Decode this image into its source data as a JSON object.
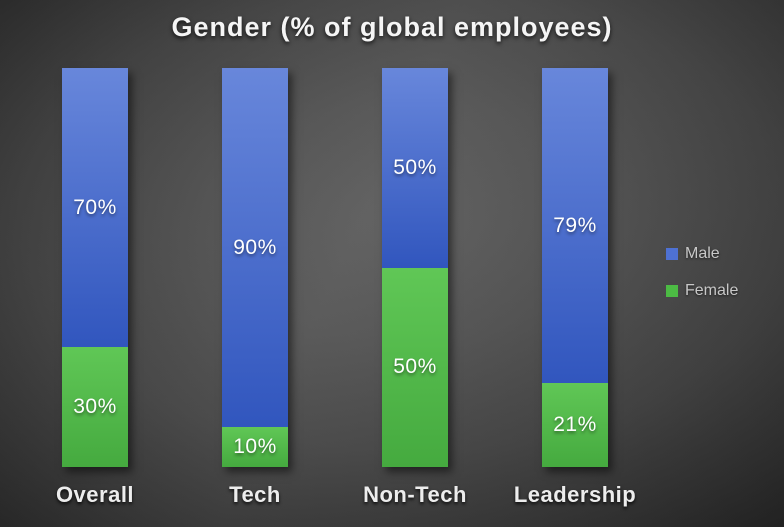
{
  "chart_data": {
    "type": "bar",
    "stacked": true,
    "title": "Gender (% of global employees)",
    "categories": [
      "Overall",
      "Tech",
      "Non-Tech",
      "Leadership"
    ],
    "series": [
      {
        "name": "Male",
        "values": [
          70,
          90,
          50,
          79
        ],
        "color": "#4E71D3",
        "gradient_top": "#6887DB",
        "gradient_bottom": "#3156BE"
      },
      {
        "name": "Female",
        "values": [
          30,
          10,
          50,
          21
        ],
        "color": "#4CBB44",
        "gradient_top": "#60C756",
        "gradient_bottom": "#45AA3F"
      }
    ],
    "value_suffix": "%",
    "ylim": [
      0,
      100
    ],
    "grid": false,
    "axes_visible": false,
    "legend_position": "right",
    "data_labels": true,
    "data_label_color": "#FFFFFF"
  },
  "colors": {
    "background_center": "#575757",
    "background_edge": "#262626",
    "title_text": "#F5F5F5",
    "category_text": "#EDEDED",
    "legend_text": "#C8C8C8"
  }
}
